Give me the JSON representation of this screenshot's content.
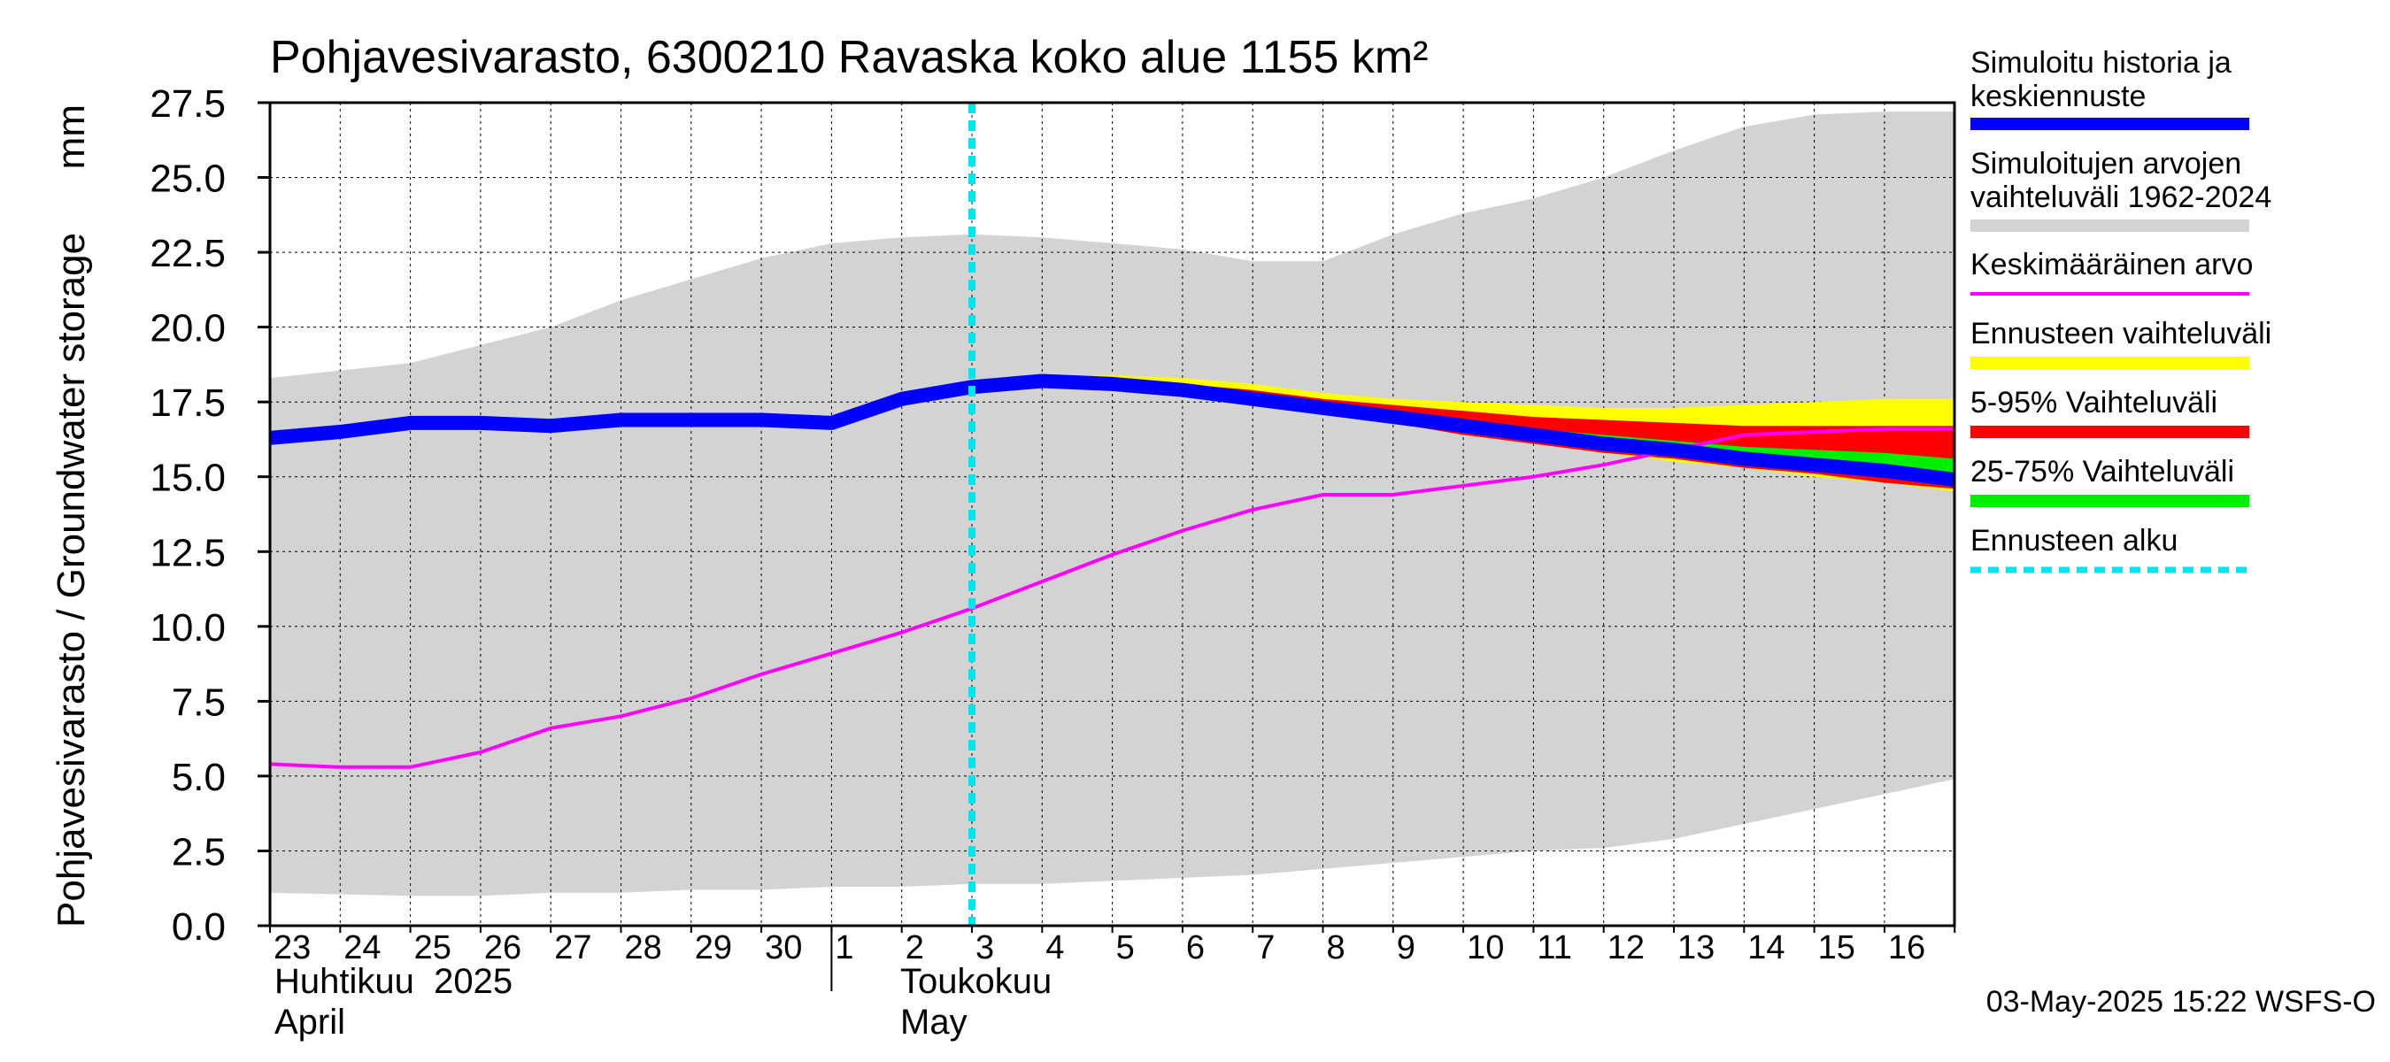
{
  "chart_data": {
    "type": "area",
    "title": "Pohjavesivarasto, 6300210 Ravaska koko alue 1155 km²",
    "ylabel": "Pohjavesivarasto / Groundwater storage",
    "yunit": "mm",
    "ylim": [
      0,
      27.5
    ],
    "yticks": [
      "0.0",
      "2.5",
      "5.0",
      "7.5",
      "10.0",
      "12.5",
      "15.0",
      "17.5",
      "20.0",
      "22.5",
      "25.0",
      "27.5"
    ],
    "x_days": [
      "23",
      "24",
      "25",
      "26",
      "27",
      "28",
      "29",
      "30",
      "1",
      "2",
      "3",
      "4",
      "5",
      "6",
      "7",
      "8",
      "9",
      "10",
      "11",
      "12",
      "13",
      "14",
      "15",
      "16"
    ],
    "months": [
      {
        "fi": "Huhtikuu  2025",
        "en": "April"
      },
      {
        "fi": "Toukokuu",
        "en": "May"
      }
    ],
    "forecast_start_date": "2025-05-03",
    "grid": true,
    "legend_position": "right",
    "legend": [
      {
        "label": "Simuloitu historia ja keskiennuste",
        "color": "#0000ff"
      },
      {
        "label": "Simuloitujen arvojen vaihteluväli 1962-2024",
        "color": "#d3d3d3"
      },
      {
        "label": "Keskimääräinen arvo",
        "color": "#ff00ff"
      },
      {
        "label": "Ennusteen vaihteluväli",
        "color": "#ffff00"
      },
      {
        "label": "5-95% Vaihteluväli",
        "color": "#ff0000"
      },
      {
        "label": "25-75% Vaihteluväli",
        "color": "#00ee00"
      },
      {
        "label": "Ennusteen alku",
        "color": "#00e5ee"
      }
    ],
    "series": {
      "range_1962_2024": {
        "dates": [
          "2025-04-23",
          "2025-04-25",
          "2025-04-26",
          "2025-04-27",
          "2025-04-28",
          "2025-04-29",
          "2025-04-30",
          "2025-05-01",
          "2025-05-02",
          "2025-05-03",
          "2025-05-04",
          "2025-05-05",
          "2025-05-06",
          "2025-05-07",
          "2025-05-08",
          "2025-05-09",
          "2025-05-10",
          "2025-05-11",
          "2025-05-12",
          "2025-05-13",
          "2025-05-14",
          "2025-05-15",
          "2025-05-16",
          "2025-05-17"
        ],
        "upper": [
          18.3,
          18.8,
          19.4,
          20.0,
          20.9,
          21.6,
          22.3,
          22.8,
          23.0,
          23.1,
          23.0,
          22.8,
          22.6,
          22.2,
          22.2,
          23.1,
          23.8,
          24.3,
          25.0,
          25.9,
          26.7,
          27.1,
          27.2,
          27.2
        ],
        "lower": [
          1.1,
          1.0,
          1.0,
          1.1,
          1.1,
          1.2,
          1.2,
          1.3,
          1.3,
          1.4,
          1.4,
          1.5,
          1.6,
          1.7,
          1.9,
          2.1,
          2.3,
          2.5,
          2.6,
          2.9,
          3.4,
          3.9,
          4.4,
          4.9
        ]
      },
      "mean_value": {
        "dates": [
          "2025-04-23",
          "2025-04-24",
          "2025-04-25",
          "2025-04-26",
          "2025-04-27",
          "2025-04-28",
          "2025-04-29",
          "2025-04-30",
          "2025-05-01",
          "2025-05-02",
          "2025-05-03",
          "2025-05-04",
          "2025-05-05",
          "2025-05-06",
          "2025-05-07",
          "2025-05-08",
          "2025-05-09",
          "2025-05-10",
          "2025-05-11",
          "2025-05-12",
          "2025-05-13",
          "2025-05-14",
          "2025-05-15",
          "2025-05-16",
          "2025-05-17"
        ],
        "values": [
          5.4,
          5.3,
          5.3,
          5.8,
          6.6,
          7.0,
          7.6,
          8.4,
          9.1,
          9.8,
          10.6,
          11.5,
          12.4,
          13.2,
          13.9,
          14.4,
          14.4,
          14.7,
          15.0,
          15.4,
          15.9,
          16.4,
          16.5,
          16.6,
          16.6
        ]
      },
      "history_and_median_forecast": {
        "dates": [
          "2025-04-23",
          "2025-04-24",
          "2025-04-25",
          "2025-04-26",
          "2025-04-27",
          "2025-04-28",
          "2025-04-29",
          "2025-04-30",
          "2025-05-01",
          "2025-05-02",
          "2025-05-03",
          "2025-05-04",
          "2025-05-05",
          "2025-05-06",
          "2025-05-07",
          "2025-05-08",
          "2025-05-09",
          "2025-05-10",
          "2025-05-11",
          "2025-05-12",
          "2025-05-13",
          "2025-05-14",
          "2025-05-15",
          "2025-05-16",
          "2025-05-17"
        ],
        "values": [
          16.3,
          16.5,
          16.8,
          16.8,
          16.7,
          16.9,
          16.9,
          16.9,
          16.8,
          17.6,
          18.0,
          18.2,
          18.1,
          17.9,
          17.6,
          17.3,
          17.0,
          16.7,
          16.4,
          16.1,
          15.9,
          15.6,
          15.4,
          15.2,
          14.9
        ]
      },
      "forecast_range": {
        "dates": [
          "2025-05-03",
          "2025-05-04",
          "2025-05-05",
          "2025-05-06",
          "2025-05-07",
          "2025-05-08",
          "2025-05-09",
          "2025-05-10",
          "2025-05-11",
          "2025-05-12",
          "2025-05-13",
          "2025-05-14",
          "2025-05-15",
          "2025-05-16",
          "2025-05-17"
        ],
        "upper": [
          18.0,
          18.3,
          18.4,
          18.3,
          18.1,
          17.8,
          17.6,
          17.5,
          17.4,
          17.3,
          17.3,
          17.4,
          17.5,
          17.6,
          17.6
        ],
        "lower": [
          18.0,
          18.1,
          18.0,
          17.8,
          17.5,
          17.2,
          16.8,
          16.4,
          16.1,
          15.8,
          15.5,
          15.3,
          15.0,
          14.8,
          14.5
        ]
      },
      "p5_95": {
        "dates": [
          "2025-05-03",
          "2025-05-04",
          "2025-05-05",
          "2025-05-06",
          "2025-05-07",
          "2025-05-08",
          "2025-05-09",
          "2025-05-10",
          "2025-05-11",
          "2025-05-12",
          "2025-05-13",
          "2025-05-14",
          "2025-05-15",
          "2025-05-16",
          "2025-05-17"
        ],
        "upper": [
          18.0,
          18.2,
          18.2,
          18.1,
          17.9,
          17.6,
          17.4,
          17.2,
          17.0,
          16.9,
          16.8,
          16.7,
          16.7,
          16.7,
          16.7
        ],
        "lower": [
          18.0,
          18.1,
          18.0,
          17.8,
          17.5,
          17.2,
          16.8,
          16.4,
          16.1,
          15.8,
          15.6,
          15.3,
          15.1,
          14.8,
          14.6
        ]
      },
      "p25_75": {
        "dates": [
          "2025-05-03",
          "2025-05-04",
          "2025-05-05",
          "2025-05-06",
          "2025-05-07",
          "2025-05-08",
          "2025-05-09",
          "2025-05-10",
          "2025-05-11",
          "2025-05-12",
          "2025-05-13",
          "2025-05-14",
          "2025-05-15",
          "2025-05-16",
          "2025-05-17"
        ],
        "upper": [
          18.0,
          18.2,
          18.1,
          18.0,
          17.7,
          17.4,
          17.1,
          16.9,
          16.6,
          16.4,
          16.2,
          16.0,
          15.9,
          15.8,
          15.6
        ],
        "lower": [
          18.0,
          18.1,
          18.0,
          17.8,
          17.6,
          17.3,
          16.9,
          16.6,
          16.3,
          16.0,
          15.7,
          15.5,
          15.3,
          15.1,
          14.9
        ]
      }
    }
  },
  "footer": {
    "timestamp": "03-May-2025 15:22 WSFS-O"
  }
}
